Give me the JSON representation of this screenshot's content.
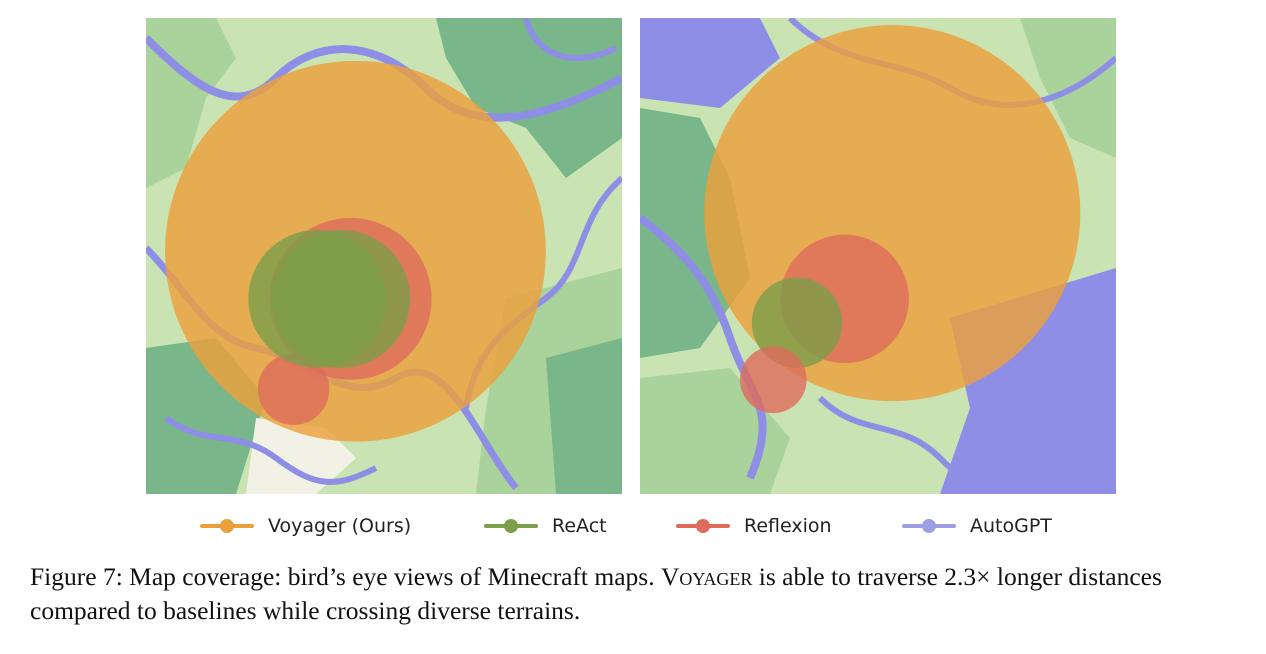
{
  "colors": {
    "voyager": "#ECA03C",
    "react": "#7C9F4A",
    "reflexion": "#DE6B5C",
    "autogpt": "#9E9EE2",
    "terrain_light": "#C9E4B2",
    "terrain_mid": "#A9D39A",
    "terrain_dark": "#79B68A",
    "water": "#8E8EE6",
    "sand": "#F1F1E6"
  },
  "legend": [
    {
      "label": "Voyager (Ours)",
      "series": "voyager"
    },
    {
      "label": "ReAct",
      "series": "react"
    },
    {
      "label": "Reflexion",
      "series": "reflexion"
    },
    {
      "label": "AutoGPT",
      "series": "autogpt"
    }
  ],
  "caption": {
    "prefix": "Figure 7: Map coverage: bird’s eye views of Minecraft maps. ",
    "name": "Voyager",
    "suffix": " is able to traverse 2.3× longer distances compared to baselines while crossing diverse terrains."
  },
  "chart_data": [
    {
      "type": "scatter",
      "panel": "left",
      "circles": [
        {
          "series": "voyager",
          "cx": 0.44,
          "cy": 0.49,
          "r": 0.4
        },
        {
          "series": "reflexion",
          "cx": 0.31,
          "cy": 0.78,
          "r": 0.075
        },
        {
          "series": "reflexion",
          "cx": 0.43,
          "cy": 0.59,
          "r": 0.17
        },
        {
          "series": "react",
          "cx": 0.36,
          "cy": 0.59,
          "r": 0.145
        },
        {
          "series": "react",
          "cx": 0.41,
          "cy": 0.59,
          "r": 0.145
        }
      ]
    },
    {
      "type": "scatter",
      "panel": "right",
      "circles": [
        {
          "series": "voyager",
          "cx": 0.53,
          "cy": 0.41,
          "r": 0.395
        },
        {
          "series": "reflexion",
          "cx": 0.43,
          "cy": 0.59,
          "r": 0.135
        },
        {
          "series": "react",
          "cx": 0.33,
          "cy": 0.64,
          "r": 0.095
        },
        {
          "series": "reflexion",
          "cx": 0.28,
          "cy": 0.76,
          "r": 0.07
        }
      ]
    }
  ]
}
